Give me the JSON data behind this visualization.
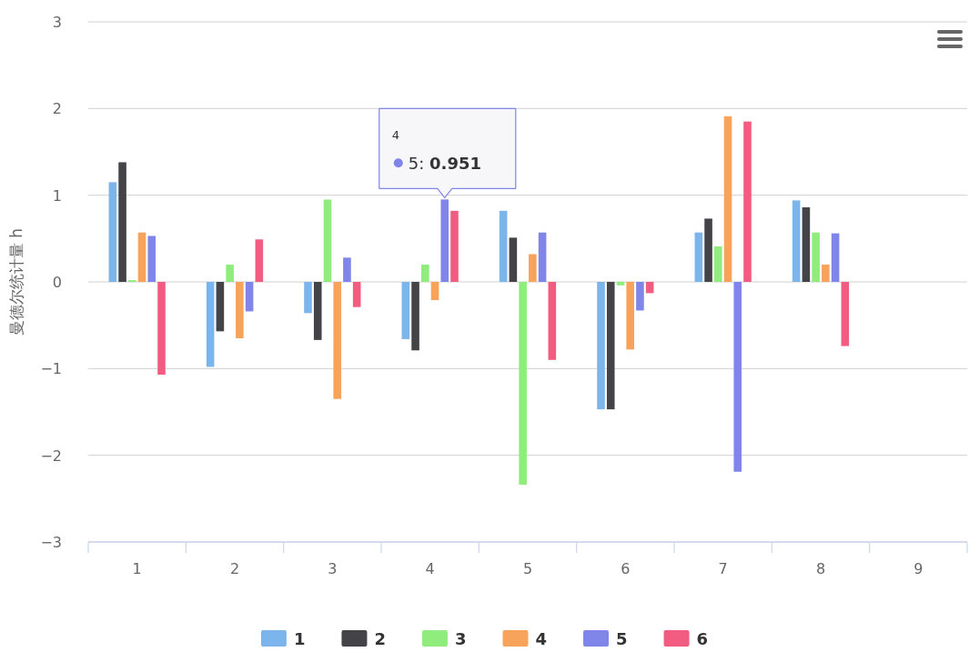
{
  "chart_data": {
    "type": "bar",
    "ylabel": "曼德尔统计量 h",
    "categories": [
      "1",
      "2",
      "3",
      "4",
      "5",
      "6",
      "7",
      "8",
      "9"
    ],
    "series": [
      {
        "name": "1",
        "color": "#7cb5ec",
        "values": [
          1.15,
          -0.98,
          -0.36,
          -0.66,
          0.82,
          -1.47,
          0.57,
          0.94,
          null
        ]
      },
      {
        "name": "2",
        "color": "#434348",
        "values": [
          1.38,
          -0.57,
          -0.67,
          -0.79,
          0.51,
          -1.47,
          0.73,
          0.86,
          null
        ]
      },
      {
        "name": "3",
        "color": "#90ed7d",
        "values": [
          0.02,
          0.2,
          0.95,
          0.2,
          -2.34,
          -0.04,
          0.41,
          0.57,
          null
        ]
      },
      {
        "name": "4",
        "color": "#f7a35c",
        "values": [
          0.57,
          -0.65,
          -1.35,
          -0.21,
          0.32,
          -0.78,
          1.91,
          0.2,
          null
        ]
      },
      {
        "name": "5",
        "color": "#8085e9",
        "values": [
          0.53,
          -0.34,
          0.28,
          0.951,
          0.57,
          -0.33,
          -2.19,
          0.56,
          null
        ]
      },
      {
        "name": "6",
        "color": "#f15c80",
        "values": [
          -1.07,
          0.49,
          -0.29,
          0.82,
          -0.9,
          -0.13,
          1.85,
          -0.74,
          null
        ]
      }
    ],
    "ylim": [
      -3,
      3
    ],
    "yticks": [
      -3,
      -2,
      -1,
      0,
      1,
      2,
      3
    ],
    "grid": "y",
    "legend": "bottom",
    "annotations": [
      "4",
      "5: **0.951**"
    ]
  }
}
